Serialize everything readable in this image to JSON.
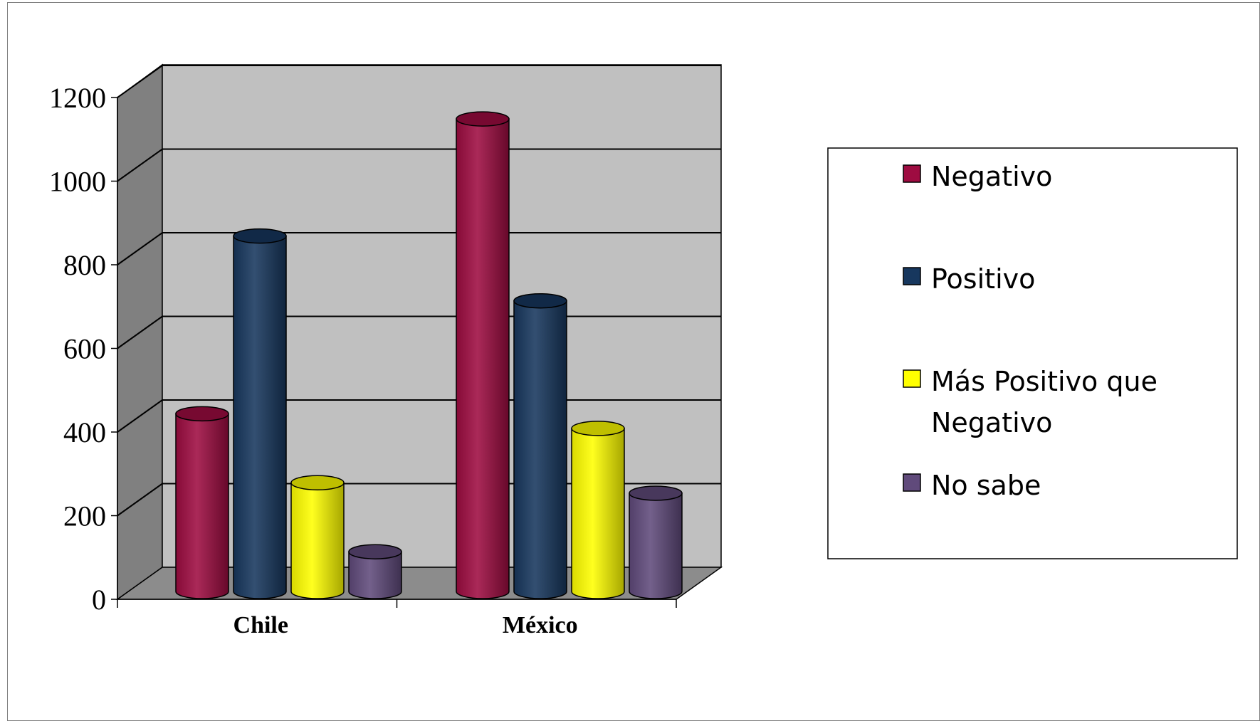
{
  "chart_data": {
    "type": "bar",
    "style": "3d-cylinder",
    "categories": [
      "Chile",
      "México"
    ],
    "series": [
      {
        "name": "Negativo",
        "values": [
          425,
          1130
        ],
        "color": "#9e0c41"
      },
      {
        "name": "Positivo",
        "values": [
          850,
          695
        ],
        "color": "#17375e"
      },
      {
        "name": "Más Positivo que Negativo",
        "values": [
          260,
          390
        ],
        "color": "#ffff00"
      },
      {
        "name": "No sabe",
        "values": [
          95,
          235
        ],
        "color": "#604a7b"
      }
    ],
    "yticks": [
      "0",
      "200",
      "400",
      "600",
      "800",
      "1000",
      "1200"
    ],
    "ylim": [
      0,
      1200
    ],
    "grid": true,
    "legend_position": "right",
    "title": "",
    "xlabel": "",
    "ylabel": ""
  }
}
